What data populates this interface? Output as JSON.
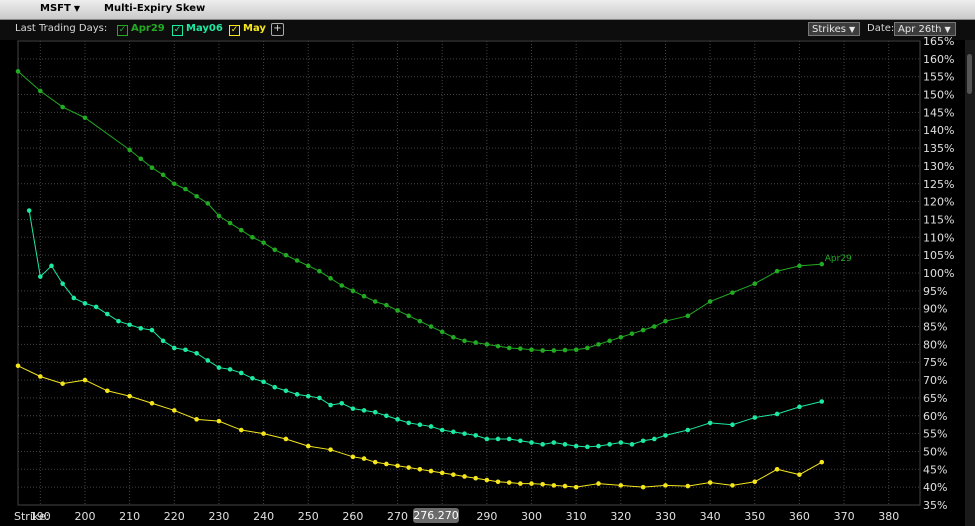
{
  "window": {
    "ticker": "MSFT",
    "title": "Multi-Expiry Skew"
  },
  "toolbar": {
    "last_trading_days_label": "Last Trading Days:",
    "expiries": [
      {
        "label": "Apr29",
        "color": "#22aa22"
      },
      {
        "label": "May06",
        "color": "#1de9a0"
      },
      {
        "label": "May",
        "color": "#f5e61c"
      }
    ],
    "add_icon": "plus-icon",
    "strikes_label": "Strikes",
    "date_label": "Date:",
    "date_value": "Apr 26th"
  },
  "axis": {
    "strike_label": "Strike:",
    "cursor_value": "276.270"
  },
  "chart_data": {
    "type": "line",
    "xlabel": "Strike:",
    "ylabel": "",
    "xlim": [
      185,
      387
    ],
    "ylim": [
      35,
      165
    ],
    "x_ticks": [
      190,
      200,
      210,
      220,
      230,
      240,
      250,
      260,
      270,
      280,
      290,
      300,
      310,
      320,
      330,
      340,
      350,
      360,
      370,
      380
    ],
    "y_ticks": [
      35,
      40,
      45,
      50,
      55,
      60,
      65,
      70,
      75,
      80,
      85,
      90,
      95,
      100,
      105,
      110,
      115,
      120,
      125,
      130,
      135,
      140,
      145,
      150,
      155,
      160,
      165
    ],
    "grid": true,
    "series": [
      {
        "name": "Apr29",
        "color": "#22aa22",
        "end_label": "Apr29",
        "x": [
          185,
          190,
          195,
          200,
          210,
          212.5,
          215,
          217.5,
          220,
          222.5,
          225,
          227.5,
          230,
          232.5,
          235,
          237.5,
          240,
          242.5,
          245,
          247.5,
          250,
          252.5,
          255,
          257.5,
          260,
          262.5,
          265,
          267.5,
          270,
          272.5,
          275,
          277.5,
          280,
          282.5,
          285,
          287.5,
          290,
          292.5,
          295,
          297.5,
          300,
          302.5,
          305,
          307.5,
          310,
          312.5,
          315,
          317.5,
          320,
          322.5,
          325,
          327.5,
          330,
          335,
          340,
          345,
          350,
          355,
          360,
          365
        ],
        "y": [
          156.5,
          151,
          146.5,
          143.5,
          134.5,
          132,
          129.5,
          127.5,
          125,
          123.5,
          121.5,
          119.5,
          116,
          114,
          112,
          110,
          108.5,
          106.5,
          105,
          103.5,
          102,
          100.5,
          98.5,
          96.5,
          95,
          93.5,
          92,
          91,
          89.5,
          88,
          86.5,
          85,
          83.5,
          82,
          81,
          80.5,
          80,
          79.5,
          79,
          78.8,
          78.5,
          78.3,
          78.3,
          78.4,
          78.5,
          79,
          80,
          81,
          82,
          83,
          84,
          85,
          86.5,
          88,
          92,
          94.5,
          97,
          100.5,
          102,
          102.5
        ]
      },
      {
        "name": "May06",
        "color": "#1de9a0",
        "x": [
          187.5,
          190,
          192.5,
          195,
          197.5,
          200,
          202.5,
          205,
          207.5,
          210,
          212.5,
          215,
          217.5,
          220,
          222.5,
          225,
          227.5,
          230,
          232.5,
          235,
          237.5,
          240,
          242.5,
          245,
          247.5,
          250,
          252.5,
          255,
          257.5,
          260,
          262.5,
          265,
          267.5,
          270,
          272.5,
          275,
          277.5,
          280,
          282.5,
          285,
          287.5,
          290,
          292.5,
          295,
          297.5,
          300,
          302.5,
          305,
          307.5,
          310,
          312.5,
          315,
          317.5,
          320,
          322.5,
          325,
          327.5,
          330,
          335,
          340,
          345,
          350,
          355,
          360,
          365
        ],
        "y": [
          117.5,
          99,
          102,
          97,
          93,
          91.5,
          90.5,
          88.5,
          86.5,
          85.5,
          84.5,
          84,
          81,
          79,
          78.5,
          77.5,
          75.5,
          73.5,
          73,
          72,
          70.5,
          69.5,
          68,
          67,
          66,
          65.5,
          65,
          63,
          63.5,
          62,
          61.5,
          61,
          60,
          59,
          58,
          57.5,
          57,
          56,
          55.5,
          55,
          54.5,
          53.5,
          53.5,
          53.5,
          53,
          52.5,
          52,
          52.5,
          52,
          51.5,
          51.3,
          51.5,
          52,
          52.5,
          52,
          53,
          53.5,
          54.5,
          56,
          58,
          57.5,
          59.5,
          60.5,
          62.5,
          64
        ]
      },
      {
        "name": "May",
        "color": "#f5e61c",
        "x": [
          185,
          190,
          195,
          200,
          205,
          210,
          215,
          220,
          225,
          230,
          235,
          240,
          245,
          250,
          255,
          260,
          262.5,
          265,
          267.5,
          270,
          272.5,
          275,
          277.5,
          280,
          282.5,
          285,
          287.5,
          290,
          292.5,
          295,
          297.5,
          300,
          302.5,
          305,
          307.5,
          310,
          315,
          320,
          325,
          330,
          335,
          340,
          345,
          350,
          355,
          360,
          365
        ],
        "y": [
          74,
          71,
          69,
          70,
          67,
          65.5,
          63.5,
          61.5,
          59,
          58.5,
          56,
          55,
          53.5,
          51.5,
          50.5,
          48.5,
          48,
          47,
          46.5,
          46,
          45.5,
          45,
          44.5,
          44,
          43.5,
          43,
          42.5,
          42,
          41.5,
          41.3,
          41,
          41,
          40.8,
          40.5,
          40.3,
          40,
          41,
          40.5,
          40,
          40.5,
          40.3,
          41.3,
          40.5,
          41.5,
          45,
          43.5,
          47
        ]
      }
    ]
  }
}
